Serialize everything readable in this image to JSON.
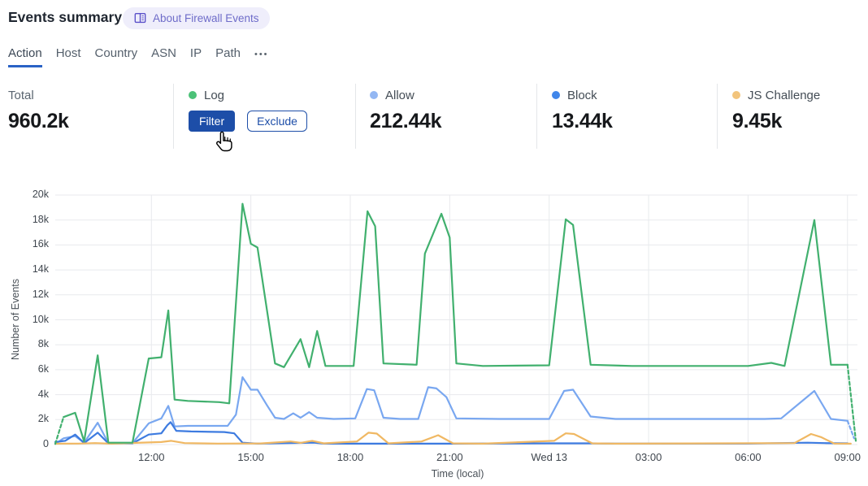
{
  "header": {
    "title": "Events summary",
    "badge": {
      "icon": "book-icon",
      "label": "About Firewall Events"
    }
  },
  "tabs": {
    "items": [
      {
        "label": "Action",
        "active": true
      },
      {
        "label": "Host",
        "active": false
      },
      {
        "label": "Country",
        "active": false
      },
      {
        "label": "ASN",
        "active": false
      },
      {
        "label": "IP",
        "active": false
      },
      {
        "label": "Path",
        "active": false
      }
    ],
    "more_label": "•••"
  },
  "stats": {
    "total": {
      "label": "Total",
      "value": "960.2k"
    },
    "log": {
      "label": "Log",
      "dot_color": "#4cc278",
      "filter_label": "Filter",
      "exclude_label": "Exclude"
    },
    "allow": {
      "label": "Allow",
      "dot_color": "#93b7f3",
      "value": "212.44k"
    },
    "block": {
      "label": "Block",
      "dot_color": "#4086ea",
      "value": "13.44k"
    },
    "js_challenge": {
      "label": "JS Challenge",
      "dot_color": "#f2c47c",
      "value": "9.45k"
    }
  },
  "chart_data": {
    "type": "line",
    "xlabel": "Time (local)",
    "ylabel": "Number of Events",
    "x_unit": "hours_local_from_Tue_00:00 (24 = Wed 13 00:00)",
    "x_range": [
      9.1,
      33.3
    ],
    "ylim": [
      0,
      20000
    ],
    "grid": true,
    "grid_color": "#e8eaed",
    "legend_position": "stats-row-top",
    "y_ticks": [
      {
        "v": 0,
        "label": "0"
      },
      {
        "v": 2000,
        "label": "2k"
      },
      {
        "v": 4000,
        "label": "4k"
      },
      {
        "v": 6000,
        "label": "6k"
      },
      {
        "v": 8000,
        "label": "8k"
      },
      {
        "v": 10000,
        "label": "10k"
      },
      {
        "v": 12000,
        "label": "12k"
      },
      {
        "v": 14000,
        "label": "14k"
      },
      {
        "v": 16000,
        "label": "16k"
      },
      {
        "v": 18000,
        "label": "18k"
      },
      {
        "v": 20000,
        "label": "20k"
      }
    ],
    "x_ticks": [
      {
        "t": 12,
        "label": "12:00"
      },
      {
        "t": 15,
        "label": "15:00"
      },
      {
        "t": 18,
        "label": "18:00"
      },
      {
        "t": 21,
        "label": "21:00"
      },
      {
        "t": 24,
        "label": "Wed 13"
      },
      {
        "t": 27,
        "label": "03:00"
      },
      {
        "t": 30,
        "label": "06:00"
      },
      {
        "t": 33,
        "label": "09:00"
      }
    ],
    "series": [
      {
        "name": "Allow",
        "color": "#79a7f0",
        "dashed_head": [
          [
            9.1,
            50
          ],
          [
            9.35,
            500
          ]
        ],
        "points": [
          [
            9.35,
            500
          ],
          [
            9.7,
            680
          ],
          [
            9.97,
            150
          ],
          [
            10.38,
            1750
          ],
          [
            10.7,
            120
          ],
          [
            11.43,
            120
          ],
          [
            11.92,
            1700
          ],
          [
            12.3,
            2100
          ],
          [
            12.51,
            3100
          ],
          [
            12.7,
            1450
          ],
          [
            13.1,
            1500
          ],
          [
            14.3,
            1500
          ],
          [
            14.55,
            2400
          ],
          [
            14.75,
            5400
          ],
          [
            15.0,
            4400
          ],
          [
            15.2,
            4400
          ],
          [
            15.5,
            3100
          ],
          [
            15.73,
            2150
          ],
          [
            16.0,
            2050
          ],
          [
            16.28,
            2500
          ],
          [
            16.5,
            2150
          ],
          [
            16.76,
            2600
          ],
          [
            17.0,
            2150
          ],
          [
            17.5,
            2050
          ],
          [
            18.15,
            2100
          ],
          [
            18.5,
            4450
          ],
          [
            18.72,
            4350
          ],
          [
            19.0,
            2150
          ],
          [
            19.5,
            2050
          ],
          [
            20.05,
            2050
          ],
          [
            20.35,
            4600
          ],
          [
            20.6,
            4500
          ],
          [
            20.9,
            3800
          ],
          [
            21.2,
            2100
          ],
          [
            22.5,
            2050
          ],
          [
            24.0,
            2050
          ],
          [
            24.45,
            4300
          ],
          [
            24.72,
            4400
          ],
          [
            25.25,
            2250
          ],
          [
            26.0,
            2050
          ],
          [
            28.0,
            2050
          ],
          [
            30.5,
            2050
          ],
          [
            31.0,
            2100
          ],
          [
            32.0,
            4300
          ],
          [
            32.5,
            2050
          ],
          [
            33.0,
            1900
          ]
        ],
        "dashed_tail": [
          [
            33.0,
            1900
          ],
          [
            33.2,
            500
          ]
        ]
      },
      {
        "name": "Block",
        "color": "#3d7be0",
        "points": [
          [
            9.1,
            200
          ],
          [
            9.4,
            300
          ],
          [
            9.7,
            800
          ],
          [
            9.97,
            120
          ],
          [
            10.38,
            950
          ],
          [
            10.7,
            100
          ],
          [
            11.43,
            100
          ],
          [
            11.92,
            800
          ],
          [
            12.3,
            900
          ],
          [
            12.48,
            1550
          ],
          [
            12.58,
            1800
          ],
          [
            12.75,
            1100
          ],
          [
            13.2,
            1050
          ],
          [
            14.2,
            1000
          ],
          [
            14.5,
            900
          ],
          [
            14.75,
            150
          ],
          [
            15.2,
            80
          ],
          [
            16.9,
            150
          ],
          [
            17.2,
            80
          ],
          [
            18.0,
            70
          ],
          [
            19.0,
            70
          ],
          [
            21.0,
            70
          ],
          [
            24.0,
            100
          ],
          [
            25.2,
            100
          ],
          [
            26.0,
            80
          ],
          [
            30.0,
            80
          ],
          [
            31.8,
            150
          ],
          [
            32.3,
            120
          ],
          [
            33.0,
            100
          ]
        ]
      },
      {
        "name": "JS Challenge",
        "color": "#f0b863",
        "points": [
          [
            9.1,
            70
          ],
          [
            9.8,
            80
          ],
          [
            10.3,
            120
          ],
          [
            10.8,
            70
          ],
          [
            12.3,
            200
          ],
          [
            12.6,
            300
          ],
          [
            13.0,
            120
          ],
          [
            14.0,
            80
          ],
          [
            15.3,
            90
          ],
          [
            16.2,
            250
          ],
          [
            16.5,
            140
          ],
          [
            16.85,
            300
          ],
          [
            17.2,
            100
          ],
          [
            18.2,
            250
          ],
          [
            18.55,
            950
          ],
          [
            18.8,
            880
          ],
          [
            19.15,
            100
          ],
          [
            20.15,
            250
          ],
          [
            20.65,
            750
          ],
          [
            21.1,
            100
          ],
          [
            22.0,
            70
          ],
          [
            24.15,
            300
          ],
          [
            24.5,
            900
          ],
          [
            24.75,
            850
          ],
          [
            25.3,
            100
          ],
          [
            26.0,
            70
          ],
          [
            31.4,
            120
          ],
          [
            31.9,
            850
          ],
          [
            32.2,
            600
          ],
          [
            32.6,
            80
          ],
          [
            33.1,
            70
          ]
        ]
      },
      {
        "name": "Log",
        "color": "#41b06e",
        "dashed_head": [
          [
            9.1,
            50
          ],
          [
            9.35,
            2200
          ]
        ],
        "points": [
          [
            9.35,
            2200
          ],
          [
            9.7,
            2550
          ],
          [
            9.97,
            250
          ],
          [
            10.38,
            7150
          ],
          [
            10.7,
            150
          ],
          [
            11.43,
            150
          ],
          [
            11.92,
            6900
          ],
          [
            12.3,
            7000
          ],
          [
            12.51,
            10750
          ],
          [
            12.7,
            3600
          ],
          [
            13.1,
            3500
          ],
          [
            14.05,
            3400
          ],
          [
            14.35,
            3300
          ],
          [
            14.75,
            19300
          ],
          [
            15.0,
            16100
          ],
          [
            15.2,
            15800
          ],
          [
            15.73,
            6500
          ],
          [
            16.0,
            6200
          ],
          [
            16.5,
            8450
          ],
          [
            16.76,
            6200
          ],
          [
            17.0,
            9100
          ],
          [
            17.25,
            6300
          ],
          [
            18.1,
            6300
          ],
          [
            18.52,
            18700
          ],
          [
            18.75,
            17500
          ],
          [
            19.0,
            6500
          ],
          [
            20.0,
            6400
          ],
          [
            20.25,
            15300
          ],
          [
            20.75,
            18500
          ],
          [
            21.0,
            16600
          ],
          [
            21.2,
            6500
          ],
          [
            22.0,
            6300
          ],
          [
            24.0,
            6350
          ],
          [
            24.5,
            18050
          ],
          [
            24.72,
            17600
          ],
          [
            25.25,
            6400
          ],
          [
            26.5,
            6300
          ],
          [
            28.0,
            6300
          ],
          [
            30.0,
            6300
          ],
          [
            30.7,
            6550
          ],
          [
            31.1,
            6300
          ],
          [
            32.0,
            18000
          ],
          [
            32.5,
            6400
          ],
          [
            33.0,
            6400
          ]
        ],
        "dashed_tail": [
          [
            33.0,
            6400
          ],
          [
            33.25,
            300
          ]
        ]
      }
    ]
  }
}
